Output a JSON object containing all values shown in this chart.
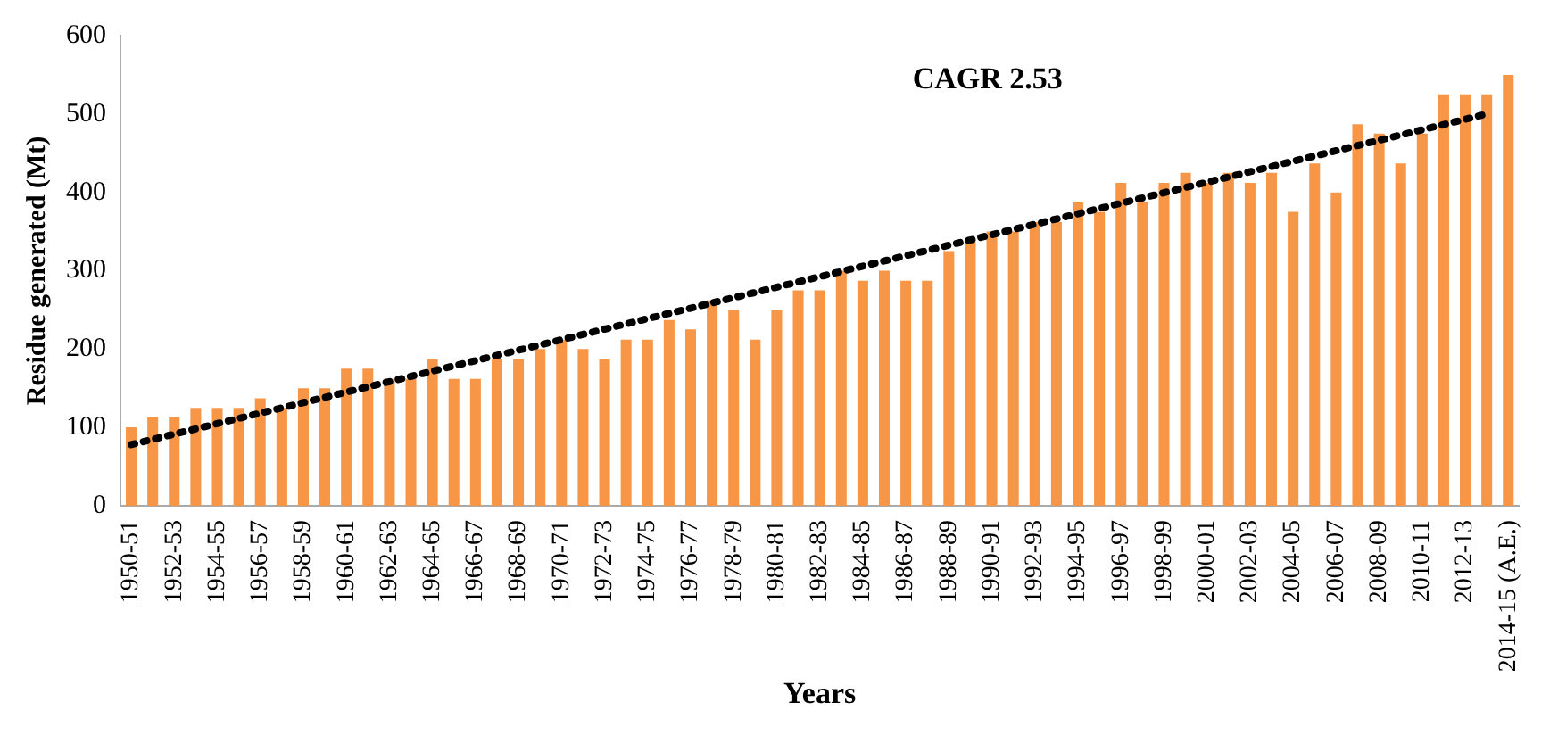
{
  "chart_data": {
    "type": "bar",
    "xlabel": "Years",
    "ylabel": "Residue generated (Mt)",
    "annotations": [
      "CAGR 2.53"
    ],
    "categories": [
      "1950-51",
      null,
      "1952-53",
      null,
      "1954-55",
      null,
      "1956-57",
      null,
      "1958-59",
      null,
      "1960-61",
      null,
      "1962-63",
      null,
      "1964-65",
      null,
      "1966-67",
      null,
      "1968-69",
      null,
      "1970-71",
      null,
      "1972-73",
      null,
      "1974-75",
      null,
      "1976-77",
      null,
      "1978-79",
      null,
      "1980-81",
      null,
      "1982-83",
      null,
      "1984-85",
      null,
      "1986-87",
      null,
      "1988-89",
      null,
      "1990-91",
      null,
      "1992-93",
      null,
      "1994-95",
      null,
      "1996-97",
      null,
      "1998-99",
      null,
      "2000-01",
      null,
      "2002-03",
      null,
      "2004-05",
      null,
      "2006-07",
      null,
      "2008-09",
      null,
      "2010-11",
      null,
      "2012-13",
      null,
      "2014-15 (A.E.)"
    ],
    "series": [
      {
        "color": "#f79646",
        "values": [
          100,
          113,
          113,
          125,
          125,
          125,
          137,
          125,
          150,
          150,
          175,
          175,
          162,
          162,
          187,
          162,
          162,
          187,
          187,
          200,
          212,
          200,
          187,
          212,
          212,
          237,
          225,
          262,
          250,
          212,
          250,
          275,
          275,
          300,
          287,
          300,
          287,
          287,
          325,
          337,
          350,
          350,
          362,
          362,
          387,
          375,
          412,
          387,
          412,
          425,
          412,
          425,
          412,
          425,
          375,
          437,
          400,
          487,
          475,
          437,
          475,
          525,
          525,
          525,
          550
        ]
      },
      {
        "type": "line",
        "color": "#000000",
        "line_style": "dotted",
        "marker": "none",
        "values": [
          78,
          null,
          null,
          null,
          null,
          null,
          null,
          null,
          null,
          null,
          null,
          null,
          null,
          null,
          null,
          null,
          null,
          null,
          null,
          null,
          null,
          null,
          null,
          null,
          null,
          null,
          null,
          null,
          null,
          null,
          null,
          null,
          null,
          null,
          null,
          null,
          null,
          null,
          null,
          null,
          null,
          null,
          null,
          null,
          null,
          null,
          null,
          null,
          null,
          null,
          null,
          null,
          null,
          null,
          null,
          null,
          null,
          null,
          null,
          null,
          null,
          null,
          null,
          500,
          null
        ]
      }
    ],
    "ylim": [
      0,
      600
    ],
    "yticks": [
      0,
      100,
      200,
      300,
      400,
      500,
      600
    ],
    "grid": false,
    "legend": false
  }
}
